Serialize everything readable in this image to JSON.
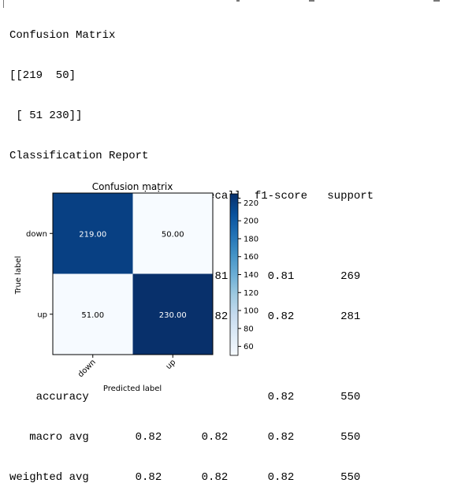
{
  "output": {
    "cm_header": "Confusion Matrix",
    "cm_line1": "[[219  50]",
    "cm_line2": " [ 51 230]]",
    "report_header": "Classification Report",
    "col_header": "                precision    recall  f1-score   support",
    "row_down": "        down       0.81      0.81      0.81       269",
    "row_up": "          up       0.82      0.82      0.82       281",
    "row_accuracy": "    accuracy                           0.82       550",
    "row_macro": "   macro avg       0.82      0.82      0.82       550",
    "row_weighted": "weighted avg       0.82      0.82      0.82       550"
  },
  "colors": {
    "cmap_low": "#f7fbff",
    "cmap_high": "#08306b"
  },
  "chart_data": {
    "type": "heatmap",
    "title": "Confusion matrix",
    "xlabel": "Predicted label",
    "ylabel": "True label",
    "x_categories": [
      "down",
      "up"
    ],
    "y_categories": [
      "down",
      "up"
    ],
    "values": [
      [
        219,
        50
      ],
      [
        51,
        230
      ]
    ],
    "cell_labels": [
      [
        "219.00",
        "50.00"
      ],
      [
        "51.00",
        "230.00"
      ]
    ],
    "colorbar": {
      "range": [
        50,
        230
      ],
      "ticks": [
        60,
        80,
        100,
        120,
        140,
        160,
        180,
        200,
        220
      ],
      "cmap": "Blues"
    },
    "grid": false
  }
}
